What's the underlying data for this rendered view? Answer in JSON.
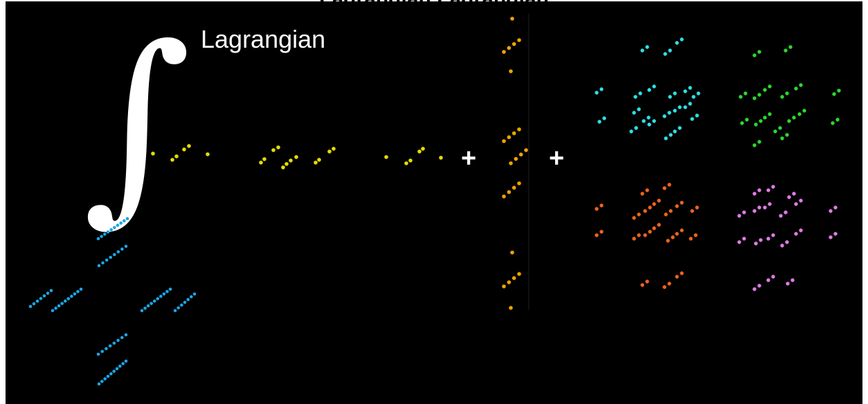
{
  "header": {
    "title": "Lagrangian Lagrangian"
  },
  "caption": {
    "label": "Lagrangian"
  },
  "symbols": {
    "integral": "∫",
    "plus_1": "+",
    "plus_2": "+"
  },
  "colors": {
    "background": "#000000",
    "blue_diagram": "#1aa6e6",
    "yellow_diagram": "#e6dc00",
    "orange_column": "#f0a300",
    "cyan_block": "#2ee0e8",
    "green_block": "#2bd92b",
    "red_block": "#f06418",
    "magenta_block": "#e27be6"
  },
  "icons": [
    "integral-sign-icon",
    "plus-icon",
    "plus-icon"
  ]
}
